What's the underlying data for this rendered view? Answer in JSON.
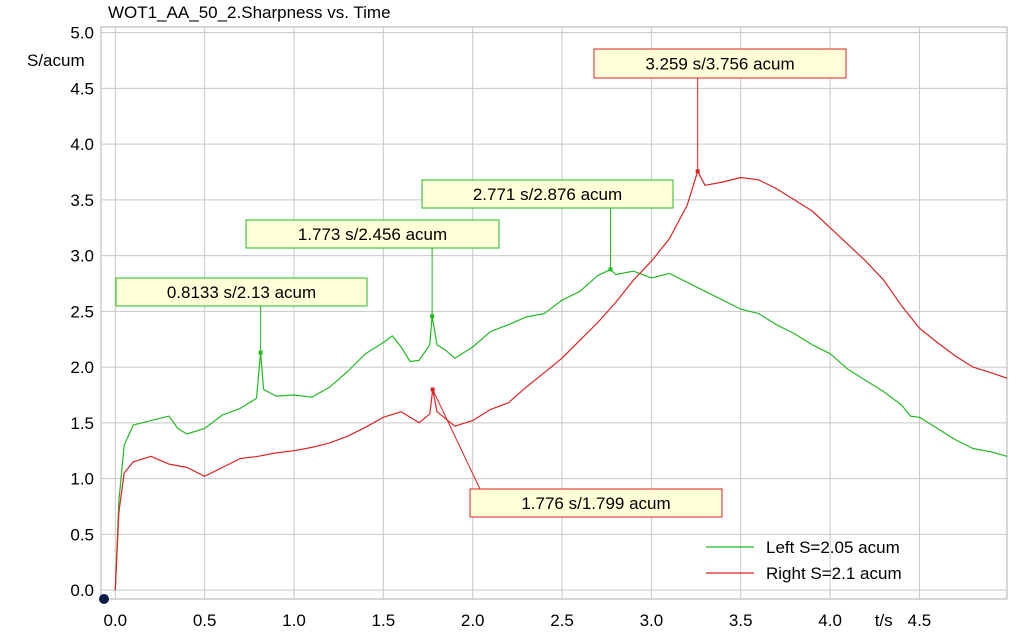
{
  "chart_data": {
    "type": "line",
    "title": "WOT1_AA_50_2.Sharpness vs. Time",
    "ylabel": "S/acum",
    "xlabel": "t/s",
    "xlim": [
      -0.08,
      4.99
    ],
    "ylim": [
      -0.08,
      5.05
    ],
    "x_ticks": [
      "0.0",
      "0.5",
      "1.0",
      "1.5",
      "2.0",
      "2.5",
      "3.0",
      "3.5",
      "4.0",
      "4.5"
    ],
    "y_ticks": [
      "0.0",
      "0.5",
      "1.0",
      "1.5",
      "2.0",
      "2.5",
      "3.0",
      "3.5",
      "4.0",
      "4.5",
      "5.0"
    ],
    "grid": true,
    "legend_position": "bottom-right",
    "series": [
      {
        "name": "Left S=2.05 acum",
        "color": "#22bb22",
        "x": [
          0,
          0.02,
          0.05,
          0.1,
          0.2,
          0.3,
          0.35,
          0.4,
          0.5,
          0.6,
          0.7,
          0.79,
          0.8133,
          0.83,
          0.9,
          1.0,
          1.1,
          1.2,
          1.3,
          1.4,
          1.5,
          1.55,
          1.6,
          1.65,
          1.7,
          1.76,
          1.773,
          1.8,
          1.85,
          1.9,
          2.0,
          2.1,
          2.2,
          2.3,
          2.4,
          2.5,
          2.6,
          2.7,
          2.771,
          2.8,
          2.9,
          3.0,
          3.1,
          3.2,
          3.3,
          3.4,
          3.5,
          3.6,
          3.7,
          3.8,
          3.9,
          4.0,
          4.1,
          4.2,
          4.3,
          4.4,
          4.45,
          4.5,
          4.6,
          4.7,
          4.8,
          4.9,
          4.99
        ],
        "y": [
          0,
          0.8,
          1.3,
          1.48,
          1.52,
          1.56,
          1.45,
          1.4,
          1.45,
          1.57,
          1.63,
          1.72,
          2.13,
          1.8,
          1.74,
          1.75,
          1.73,
          1.82,
          1.96,
          2.12,
          2.22,
          2.28,
          2.18,
          2.05,
          2.06,
          2.2,
          2.456,
          2.2,
          2.15,
          2.08,
          2.18,
          2.32,
          2.38,
          2.45,
          2.48,
          2.6,
          2.68,
          2.82,
          2.876,
          2.83,
          2.86,
          2.8,
          2.84,
          2.76,
          2.68,
          2.6,
          2.52,
          2.48,
          2.38,
          2.3,
          2.2,
          2.12,
          1.98,
          1.88,
          1.78,
          1.66,
          1.56,
          1.55,
          1.45,
          1.35,
          1.27,
          1.24,
          1.2
        ]
      },
      {
        "name": "Right S=2.1 acum",
        "color": "#dd2222",
        "x": [
          0,
          0.02,
          0.05,
          0.1,
          0.2,
          0.3,
          0.4,
          0.5,
          0.6,
          0.7,
          0.8,
          0.9,
          1.0,
          1.1,
          1.2,
          1.3,
          1.4,
          1.5,
          1.6,
          1.7,
          1.76,
          1.776,
          1.8,
          1.9,
          2.0,
          2.1,
          2.2,
          2.3,
          2.4,
          2.5,
          2.6,
          2.7,
          2.8,
          2.9,
          3.0,
          3.1,
          3.2,
          3.259,
          3.3,
          3.4,
          3.5,
          3.6,
          3.7,
          3.8,
          3.9,
          4.0,
          4.1,
          4.2,
          4.3,
          4.4,
          4.5,
          4.6,
          4.7,
          4.8,
          4.9,
          4.99
        ],
        "y": [
          0,
          0.7,
          1.05,
          1.15,
          1.2,
          1.13,
          1.1,
          1.02,
          1.1,
          1.18,
          1.2,
          1.23,
          1.25,
          1.28,
          1.32,
          1.38,
          1.46,
          1.55,
          1.6,
          1.5,
          1.58,
          1.799,
          1.6,
          1.47,
          1.52,
          1.62,
          1.68,
          1.82,
          1.95,
          2.08,
          2.24,
          2.4,
          2.58,
          2.78,
          2.95,
          3.15,
          3.45,
          3.756,
          3.63,
          3.66,
          3.7,
          3.68,
          3.6,
          3.5,
          3.4,
          3.25,
          3.1,
          2.95,
          2.78,
          2.55,
          2.35,
          2.22,
          2.1,
          2.0,
          1.95,
          1.9
        ]
      }
    ],
    "annotations": [
      {
        "series": 0,
        "text": "0.8133 s/2.13 acum",
        "x": 0.8133,
        "y": 2.13
      },
      {
        "series": 0,
        "text": "1.773 s/2.456 acum",
        "x": 1.773,
        "y": 2.456
      },
      {
        "series": 0,
        "text": "2.771 s/2.876 acum",
        "x": 2.771,
        "y": 2.876
      },
      {
        "series": 1,
        "text": "3.259 s/3.756 acum",
        "x": 3.259,
        "y": 3.756
      },
      {
        "series": 1,
        "text": "1.776 s/1.799 acum",
        "x": 1.776,
        "y": 1.799
      }
    ],
    "annotation_fill": "#ffffd8"
  }
}
